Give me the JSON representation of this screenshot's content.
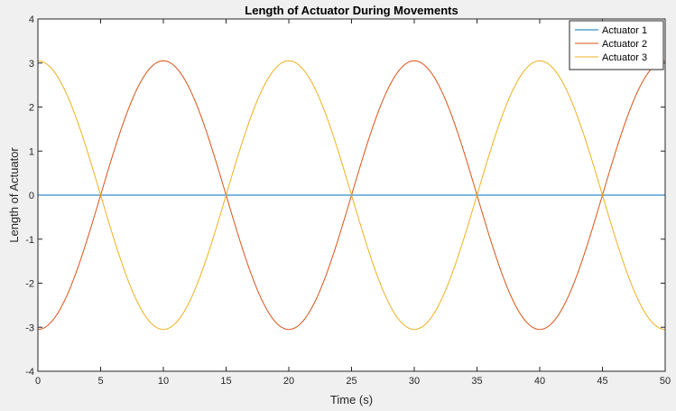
{
  "chart_data": {
    "type": "line",
    "title": "Length of Actuator During Movements",
    "xlabel": "Time (s)",
    "ylabel": "Length of Actuator",
    "xlim": [
      0,
      50
    ],
    "ylim": [
      -4,
      4
    ],
    "xticks": [
      0,
      5,
      10,
      15,
      20,
      25,
      30,
      35,
      40,
      45,
      50
    ],
    "yticks": [
      -4,
      -3,
      -2,
      -1,
      0,
      1,
      2,
      3,
      4
    ],
    "grid": false,
    "legend_position": "top-right",
    "series": [
      {
        "name": "Actuator 1",
        "color": "#0072bd",
        "x": [
          0,
          50
        ],
        "y": [
          0,
          0
        ]
      },
      {
        "name": "Actuator 2",
        "color": "#d95319",
        "x": [
          0,
          2.5,
          5,
          7.5,
          10,
          12.5,
          15,
          17.5,
          20,
          22.5,
          25,
          27.5,
          30,
          32.5,
          35,
          37.5,
          40,
          42.5,
          45,
          47.5,
          50
        ],
        "y": [
          -3.05,
          -2.16,
          0,
          2.16,
          3.05,
          2.16,
          0,
          -2.16,
          -3.05,
          -2.16,
          0,
          2.16,
          3.05,
          2.16,
          0,
          -2.16,
          -3.05,
          -2.16,
          0,
          2.16,
          3.05
        ]
      },
      {
        "name": "Actuator 3",
        "color": "#edb120",
        "x": [
          0,
          2.5,
          5,
          7.5,
          10,
          12.5,
          15,
          17.5,
          20,
          22.5,
          25,
          27.5,
          30,
          32.5,
          35,
          37.5,
          40,
          42.5,
          45,
          47.5,
          50
        ],
        "y": [
          3.05,
          2.16,
          0,
          -2.16,
          -3.05,
          -2.16,
          0,
          2.16,
          3.05,
          2.16,
          0,
          -2.16,
          -3.05,
          -2.16,
          0,
          2.16,
          3.05,
          2.16,
          0,
          -2.16,
          -3.05
        ]
      }
    ]
  }
}
